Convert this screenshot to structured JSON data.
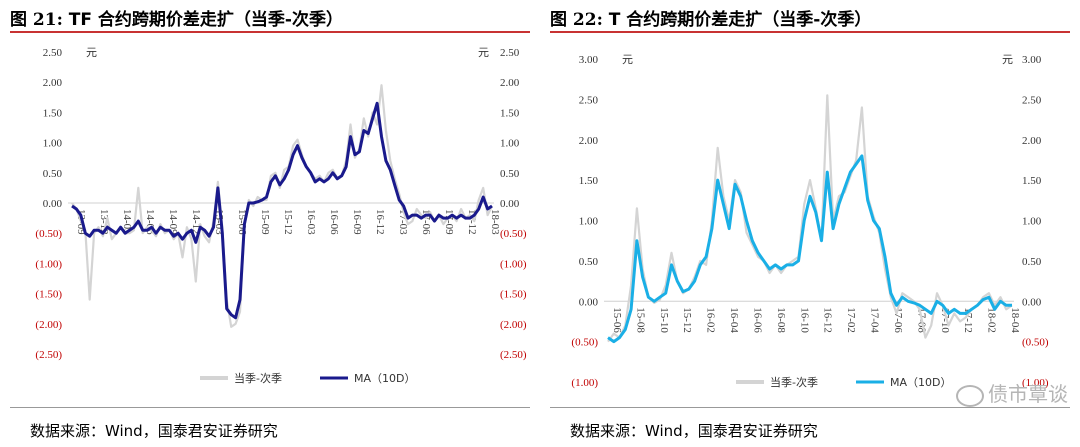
{
  "chart_data": [
    {
      "type": "line",
      "title_prefix": "图 21:",
      "title": "TF 合约跨期价差走扩（当季-次季）",
      "unit_left": "元",
      "unit_right": "元",
      "ylim": [
        -2.5,
        2.5
      ],
      "yticks": [
        2.5,
        2.0,
        1.5,
        1.0,
        0.5,
        0.0,
        -0.5,
        -1.0,
        -1.5,
        -2.0,
        -2.5
      ],
      "ytick_labels": [
        "2.50",
        "2.00",
        "1.50",
        "1.00",
        "0.50",
        "0.00",
        "(0.50)",
        "(1.00)",
        "(1.50)",
        "(2.00)",
        "(2.50)"
      ],
      "x_labels": [
        "13-09",
        "13-12",
        "14-03",
        "14-06",
        "14-09",
        "14-12",
        "15-03",
        "15-06",
        "15-09",
        "15-12",
        "16-03",
        "16-06",
        "16-09",
        "16-12",
        "17-03",
        "17-06",
        "17-09",
        "17-12",
        "18-03"
      ],
      "negative_tick_color": "#c00000",
      "series": [
        {
          "name": "当季-次季",
          "color": "#d4d4d4",
          "values": [
            0.0,
            -0.1,
            -0.3,
            -0.45,
            -1.6,
            -0.5,
            -0.4,
            -0.55,
            -0.25,
            -0.6,
            -0.5,
            -0.4,
            -0.5,
            -0.5,
            -0.45,
            0.25,
            -0.5,
            -0.4,
            -0.45,
            -0.55,
            -0.35,
            -0.5,
            -0.45,
            -0.6,
            -0.5,
            -0.9,
            -0.4,
            -0.6,
            -1.3,
            -0.35,
            -0.55,
            -0.65,
            -0.3,
            0.35,
            -0.4,
            -1.6,
            -2.05,
            -2.0,
            -1.8,
            -0.4,
            0.05,
            -0.05,
            0.1,
            0.05,
            0.05,
            0.45,
            0.5,
            0.25,
            0.55,
            0.6,
            0.95,
            1.05,
            0.8,
            0.6,
            0.5,
            0.4,
            0.45,
            0.35,
            0.5,
            0.55,
            0.4,
            0.45,
            0.7,
            1.3,
            0.75,
            0.9,
            1.4,
            1.1,
            1.5,
            1.3,
            1.95,
            1.2,
            0.7,
            0.4,
            0.15,
            -0.15,
            -0.35,
            -0.3,
            -0.1,
            -0.2,
            -0.25,
            -0.15,
            -0.3,
            -0.2,
            -0.35,
            -0.25,
            -0.2,
            -0.3,
            -0.1,
            -0.25,
            -0.2,
            -0.3,
            0.05,
            0.25,
            -0.2,
            -0.05
          ]
        },
        {
          "name": "MA（10D）",
          "color": "#1a1a8c",
          "values": [
            -0.05,
            -0.1,
            -0.2,
            -0.5,
            -0.55,
            -0.45,
            -0.45,
            -0.5,
            -0.4,
            -0.45,
            -0.5,
            -0.4,
            -0.5,
            -0.45,
            -0.4,
            -0.3,
            -0.45,
            -0.45,
            -0.4,
            -0.5,
            -0.4,
            -0.45,
            -0.45,
            -0.55,
            -0.5,
            -0.6,
            -0.5,
            -0.45,
            -0.65,
            -0.4,
            -0.45,
            -0.55,
            -0.4,
            0.25,
            -0.5,
            -1.75,
            -1.85,
            -1.9,
            -1.6,
            -0.35,
            0.0,
            0.0,
            0.02,
            0.05,
            0.1,
            0.35,
            0.45,
            0.3,
            0.4,
            0.55,
            0.8,
            0.95,
            0.75,
            0.6,
            0.5,
            0.35,
            0.4,
            0.35,
            0.4,
            0.5,
            0.4,
            0.45,
            0.6,
            1.1,
            0.8,
            0.85,
            1.2,
            1.15,
            1.4,
            1.65,
            1.1,
            0.7,
            0.55,
            0.3,
            0.05,
            -0.05,
            -0.25,
            -0.2,
            -0.2,
            -0.25,
            -0.2,
            -0.2,
            -0.3,
            -0.2,
            -0.25,
            -0.25,
            -0.2,
            -0.25,
            -0.2,
            -0.25,
            -0.25,
            -0.2,
            -0.1,
            0.1,
            -0.1,
            -0.05
          ]
        }
      ]
    },
    {
      "type": "line",
      "title_prefix": "图 22:",
      "title": "T 合约跨期价差走扩（当季-次季）",
      "unit_left": "元",
      "unit_right": "元",
      "ylim": [
        -1.0,
        3.0
      ],
      "yticks": [
        3.0,
        2.5,
        2.0,
        1.5,
        1.0,
        0.5,
        0.0,
        -0.5,
        -1.0
      ],
      "ytick_labels": [
        "3.00",
        "2.50",
        "2.00",
        "1.50",
        "1.00",
        "0.50",
        "0.00",
        "(0.50)",
        "(1.00)"
      ],
      "x_labels": [
        "15-06",
        "15-08",
        "15-10",
        "15-12",
        "16-02",
        "16-04",
        "16-06",
        "16-08",
        "16-10",
        "16-12",
        "17-02",
        "17-04",
        "17-06",
        "17-08",
        "17-10",
        "17-12",
        "18-02",
        "18-04"
      ],
      "negative_tick_color": "#c00000",
      "series": [
        {
          "name": "当季-次季",
          "color": "#d4d4d4",
          "values": [
            -0.5,
            -0.4,
            -0.45,
            -0.3,
            0.2,
            1.15,
            0.4,
            0.05,
            -0.02,
            0.02,
            0.2,
            0.6,
            0.25,
            0.1,
            0.15,
            0.3,
            0.5,
            0.45,
            1.0,
            1.9,
            1.3,
            1.0,
            1.5,
            1.35,
            0.85,
            0.7,
            0.55,
            0.5,
            0.35,
            0.45,
            0.35,
            0.45,
            0.5,
            0.55,
            1.2,
            1.5,
            1.15,
            0.75,
            2.55,
            1.0,
            1.3,
            1.35,
            1.55,
            1.75,
            2.4,
            1.3,
            1.05,
            0.85,
            0.4,
            0.05,
            -0.15,
            0.1,
            0.05,
            0.0,
            -0.1,
            -0.45,
            -0.3,
            0.1,
            -0.05,
            -0.3,
            -0.15,
            -0.25,
            -0.2,
            -0.1,
            -0.05,
            0.05,
            0.1,
            -0.05,
            0.05,
            -0.1,
            -0.05
          ]
        },
        {
          "name": "MA（10D）",
          "color": "#1aafe6",
          "values": [
            -0.45,
            -0.5,
            -0.45,
            -0.35,
            -0.1,
            0.75,
            0.3,
            0.05,
            0.0,
            0.05,
            0.1,
            0.45,
            0.25,
            0.12,
            0.15,
            0.25,
            0.45,
            0.55,
            0.9,
            1.5,
            1.2,
            0.9,
            1.45,
            1.3,
            1.0,
            0.75,
            0.6,
            0.5,
            0.4,
            0.45,
            0.4,
            0.45,
            0.45,
            0.5,
            1.0,
            1.3,
            1.1,
            0.75,
            1.6,
            0.9,
            1.2,
            1.4,
            1.6,
            1.7,
            1.8,
            1.25,
            1.0,
            0.9,
            0.55,
            0.1,
            -0.05,
            0.05,
            0.0,
            -0.02,
            -0.05,
            -0.1,
            -0.15,
            0.0,
            -0.05,
            -0.15,
            -0.1,
            -0.15,
            -0.15,
            -0.1,
            -0.05,
            0.02,
            0.05,
            -0.1,
            0.0,
            -0.05,
            -0.05
          ]
        }
      ]
    }
  ],
  "source_text": "数据来源：Wind，国泰君安证券研究",
  "watermark": "债市覃谈"
}
